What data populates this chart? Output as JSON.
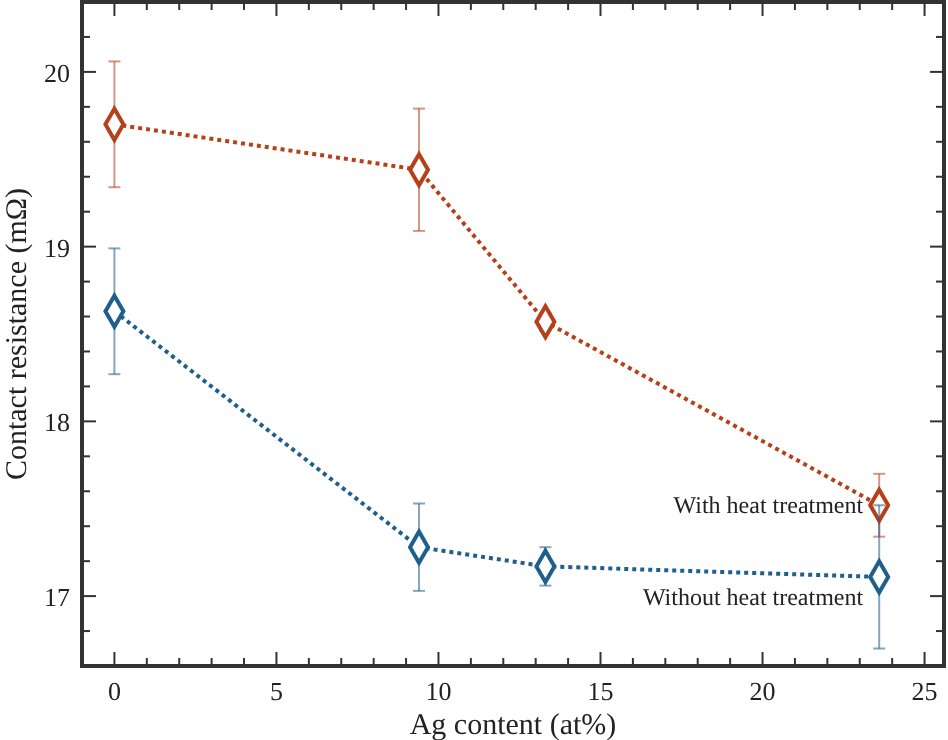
{
  "chart_data": {
    "type": "line",
    "xlabel": "Ag content (at%)",
    "ylabel": "Contact resistance (mΩ)",
    "x": [
      0,
      9.4,
      13.3,
      23.6
    ],
    "series": [
      {
        "name": "With heat treatment",
        "color": "#b5401a",
        "values": [
          19.7,
          19.44,
          18.57,
          17.52
        ],
        "errors": [
          0.36,
          0.35,
          0.05,
          0.18
        ]
      },
      {
        "name": "Without heat treatment",
        "color": "#1f5f8b",
        "values": [
          18.63,
          17.28,
          17.17,
          17.11
        ],
        "errors": [
          0.36,
          0.25,
          0.11,
          0.41
        ]
      }
    ],
    "xlim": [
      -1,
      25.6
    ],
    "ylim": [
      16.6,
      20.4
    ],
    "xticks": [
      0,
      {
        "value": 1,
        "label": null
      },
      {
        "value": 2,
        "label": null
      },
      {
        "value": 3,
        "label": null
      },
      {
        "value": 4,
        "label": null
      },
      5,
      {
        "value": 6,
        "label": null
      },
      {
        "value": 7,
        "label": null
      },
      {
        "value": 8,
        "label": null
      },
      {
        "value": 9,
        "label": null
      },
      10,
      {
        "value": 11,
        "label": null
      },
      {
        "value": 12,
        "label": null
      },
      {
        "value": 13,
        "label": null
      },
      {
        "value": 14,
        "label": null
      },
      15,
      {
        "value": 16,
        "label": null
      },
      {
        "value": 17,
        "label": null
      },
      {
        "value": 18,
        "label": null
      },
      {
        "value": 19,
        "label": null
      },
      20,
      {
        "value": 21,
        "label": null
      },
      {
        "value": 22,
        "label": null
      },
      {
        "value": 23,
        "label": null
      },
      {
        "value": 24,
        "label": null
      },
      25
    ],
    "yticks": [
      {
        "value": 16.8,
        "label": null
      },
      17,
      {
        "value": 17.2,
        "label": null
      },
      {
        "value": 17.4,
        "label": null
      },
      {
        "value": 17.6,
        "label": null
      },
      {
        "value": 17.8,
        "label": null
      },
      18,
      {
        "value": 18.2,
        "label": null
      },
      {
        "value": 18.4,
        "label": null
      },
      {
        "value": 18.6,
        "label": null
      },
      {
        "value": 18.8,
        "label": null
      },
      19,
      {
        "value": 19.2,
        "label": null
      },
      {
        "value": 19.4,
        "label": null
      },
      {
        "value": 19.6,
        "label": null
      },
      {
        "value": 19.8,
        "label": null
      },
      20,
      {
        "value": 20.2,
        "label": null
      }
    ],
    "grid": false,
    "marker": "diamond",
    "line_style": "dotted"
  }
}
